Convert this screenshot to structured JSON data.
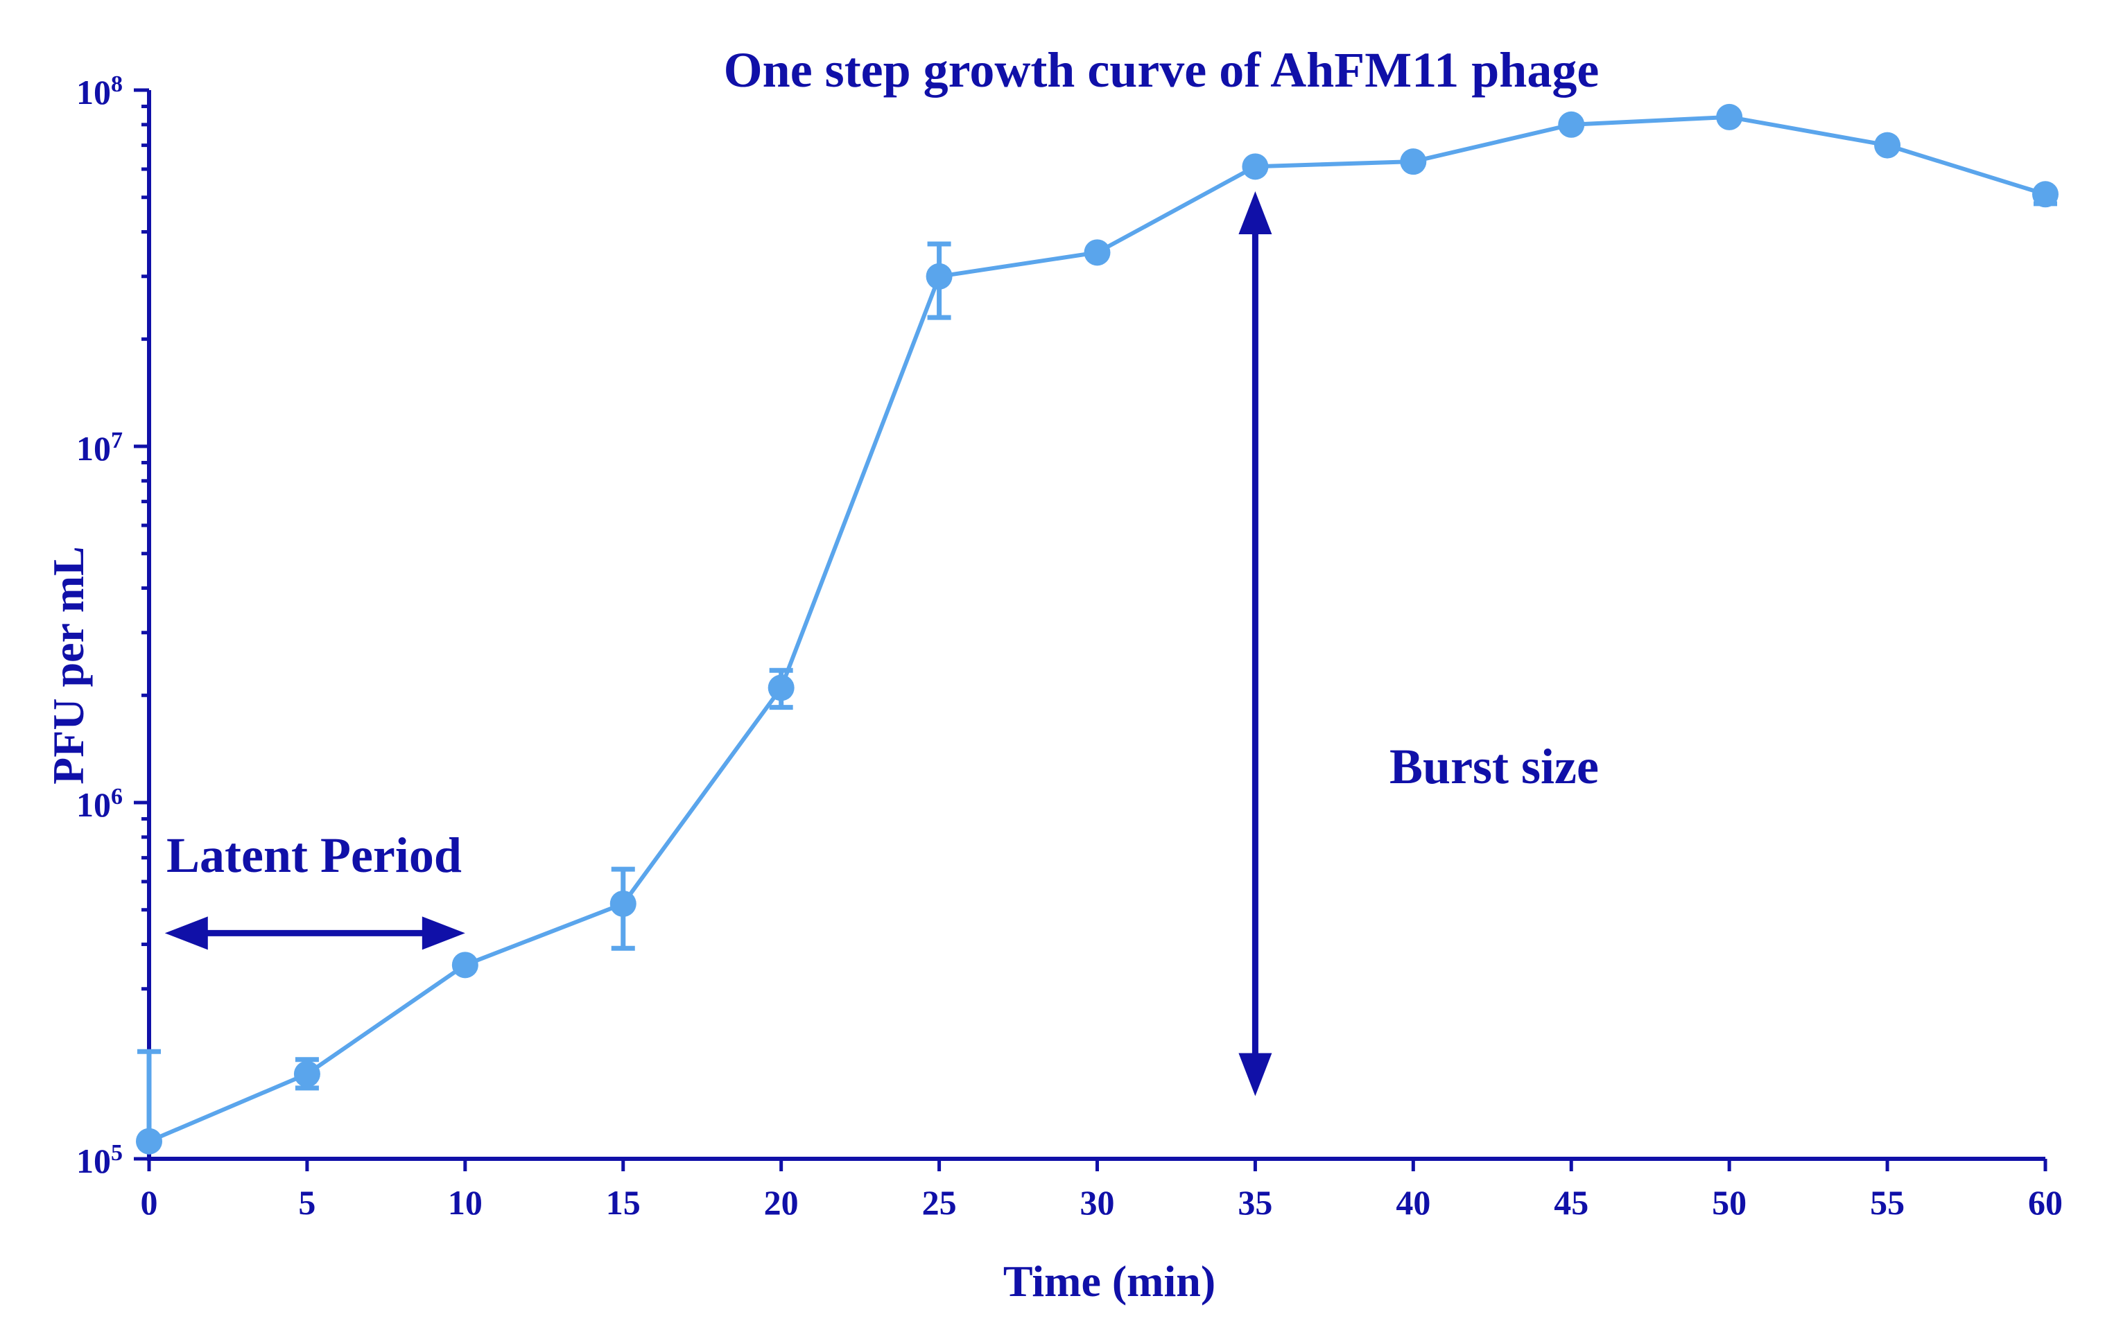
{
  "chart_data": {
    "type": "line",
    "title": "One step growth curve of AhFM11 phage",
    "xlabel": "Time (min)",
    "ylabel": "PFU per mL",
    "xlim": [
      0,
      60
    ],
    "ylim": [
      100000,
      100000000
    ],
    "yscale": "log",
    "x_ticks": [
      0,
      5,
      10,
      15,
      20,
      25,
      30,
      35,
      40,
      45,
      50,
      55,
      60
    ],
    "y_ticks": [
      {
        "value": 100000,
        "base": "10",
        "exp": "5"
      },
      {
        "value": 1000000,
        "base": "10",
        "exp": "6"
      },
      {
        "value": 10000000,
        "base": "10",
        "exp": "7"
      },
      {
        "value": 100000000,
        "base": "10",
        "exp": "8"
      }
    ],
    "series": [
      {
        "name": "AhFM11",
        "color": "#5aa5ec",
        "points": [
          {
            "x": 0,
            "y": 112000,
            "lo": 112000,
            "hi": 200000
          },
          {
            "x": 5,
            "y": 173000,
            "lo": 158000,
            "hi": 190000
          },
          {
            "x": 10,
            "y": 350000,
            "lo": 350000,
            "hi": 350000
          },
          {
            "x": 15,
            "y": 520000,
            "lo": 390000,
            "hi": 650000
          },
          {
            "x": 20,
            "y": 2100000,
            "lo": 1850000,
            "hi": 2350000
          },
          {
            "x": 25,
            "y": 30000000,
            "lo": 23000000,
            "hi": 37000000
          },
          {
            "x": 30,
            "y": 35000000,
            "lo": 35000000,
            "hi": 35000000
          },
          {
            "x": 35,
            "y": 61000000,
            "lo": 61000000,
            "hi": 61000000
          },
          {
            "x": 40,
            "y": 63000000,
            "lo": 63000000,
            "hi": 63000000
          },
          {
            "x": 45,
            "y": 80000000,
            "lo": 80000000,
            "hi": 80000000
          },
          {
            "x": 50,
            "y": 84000000,
            "lo": 84000000,
            "hi": 84000000
          },
          {
            "x": 55,
            "y": 70000000,
            "lo": 70000000,
            "hi": 70000000
          },
          {
            "x": 60,
            "y": 51000000,
            "lo": 48000000,
            "hi": 51000000
          }
        ]
      }
    ],
    "annotations": [
      {
        "id": "latent",
        "text": "Latent Period",
        "arrow": "horizontal",
        "x_from": 0.5,
        "x_to": 10,
        "y": 430000
      },
      {
        "id": "burst",
        "text": "Burst size",
        "arrow": "vertical",
        "x": 35,
        "y_from": 150000,
        "y_to": 52000000
      }
    ]
  }
}
